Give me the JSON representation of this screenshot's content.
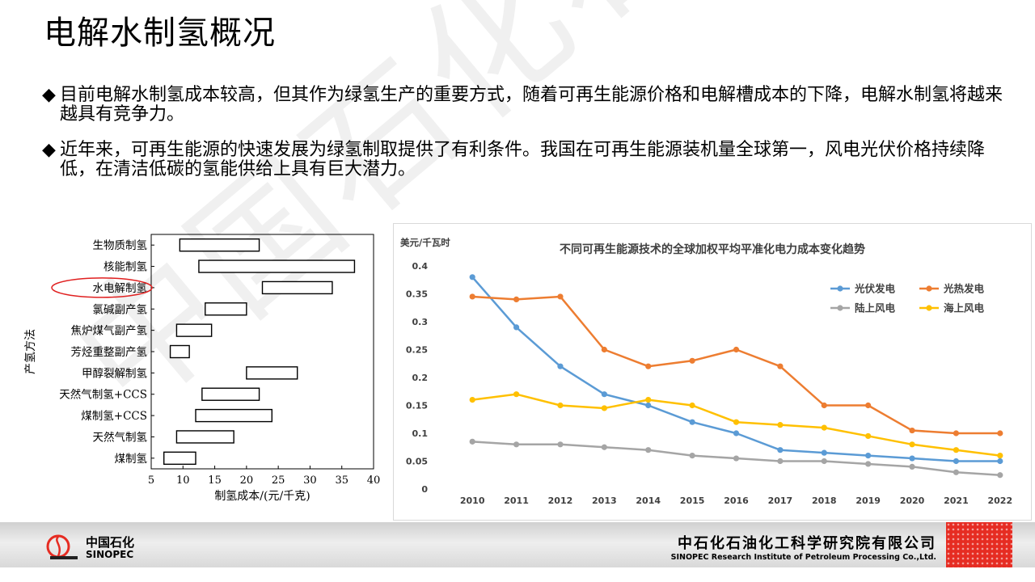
{
  "slide": {
    "title": "电解水制氢概况",
    "bullet_mark": "◆",
    "bullets": [
      "目前电解水制氢成本较高，但其作为绿氢生产的重要方式，随着可再生能源价格和电解槽成本的下降，电解水制氢将越来越具有竞争力。",
      "近年来，可再生能源的快速发展为绿氢制取提供了有利条件。我国在可再生能源装机量全球第一，风电光伏价格持续降低，在清洁低碳的氢能供给上具有巨大潜力。"
    ],
    "watermark": "中国石化石科院"
  },
  "footer": {
    "logo_cn": "中国石化",
    "logo_en": "SINOPEC",
    "org_cn": "中石化石油化工科学研究院有限公司",
    "org_en": "SINOPEC Research Institute of Petroleum Processing Co.,Ltd."
  },
  "colors": {
    "pv": "#5b9bd5",
    "csp": "#ed7d31",
    "onshore": "#a5a5a5",
    "offshore": "#ffc000",
    "highlight": "#e02020",
    "footer_red": "#e62c22"
  },
  "chart_data": [
    {
      "type": "bar",
      "orientation": "horizontal-range",
      "title": "",
      "xlabel": "制氢成本/(元/千克)",
      "ylabel": "产氢方法",
      "xlim": [
        5,
        40
      ],
      "xticks": [
        5,
        10,
        15,
        20,
        25,
        30,
        35,
        40
      ],
      "highlighted": "水电解制氢",
      "categories": [
        "生物质制氢",
        "核能制氢",
        "水电解制氢",
        "氯碱副产氢",
        "焦炉煤气副产氢",
        "芳烃重整副产氢",
        "甲醇裂解制氢",
        "天然气制氢+CCS",
        "煤制氢+CCS",
        "天然气制氢",
        "煤制氢"
      ],
      "ranges": [
        [
          9.5,
          22
        ],
        [
          12.5,
          37
        ],
        [
          22.5,
          33.5
        ],
        [
          13.5,
          20
        ],
        [
          9,
          14.5
        ],
        [
          8,
          11
        ],
        [
          20,
          28
        ],
        [
          13,
          22
        ],
        [
          12,
          24
        ],
        [
          9,
          18
        ],
        [
          7,
          12
        ]
      ]
    },
    {
      "type": "line",
      "title": "不同可再生能源技术的全球加权平均平准化电力成本变化趋势",
      "ylabel": "美元/千瓦时",
      "xlabel": "",
      "ylim": [
        0,
        0.4
      ],
      "yticks": [
        0,
        0.05,
        0.1,
        0.15,
        0.2,
        0.25,
        0.3,
        0.35,
        0.4
      ],
      "x": [
        2010,
        2011,
        2012,
        2013,
        2014,
        2015,
        2016,
        2017,
        2018,
        2019,
        2020,
        2021,
        2022
      ],
      "legend_position": "top-right",
      "grid": false,
      "series": [
        {
          "name": "光伏发电",
          "key": "pv",
          "values": [
            0.38,
            0.29,
            0.22,
            0.17,
            0.15,
            0.12,
            0.1,
            0.07,
            0.065,
            0.06,
            0.055,
            0.05,
            0.05
          ]
        },
        {
          "name": "光热发电",
          "key": "csp",
          "values": [
            0.345,
            0.34,
            0.345,
            0.25,
            0.22,
            0.23,
            0.25,
            0.22,
            0.15,
            0.15,
            0.105,
            0.1,
            0.1
          ]
        },
        {
          "name": "陆上风电",
          "key": "onshore",
          "values": [
            0.085,
            0.08,
            0.08,
            0.075,
            0.07,
            0.06,
            0.055,
            0.05,
            0.05,
            0.045,
            0.04,
            0.03,
            0.025
          ]
        },
        {
          "name": "海上风电",
          "key": "offshore",
          "values": [
            0.16,
            0.17,
            0.15,
            0.145,
            0.16,
            0.15,
            0.12,
            0.115,
            0.11,
            0.095,
            0.08,
            0.07,
            0.06
          ]
        }
      ]
    }
  ]
}
